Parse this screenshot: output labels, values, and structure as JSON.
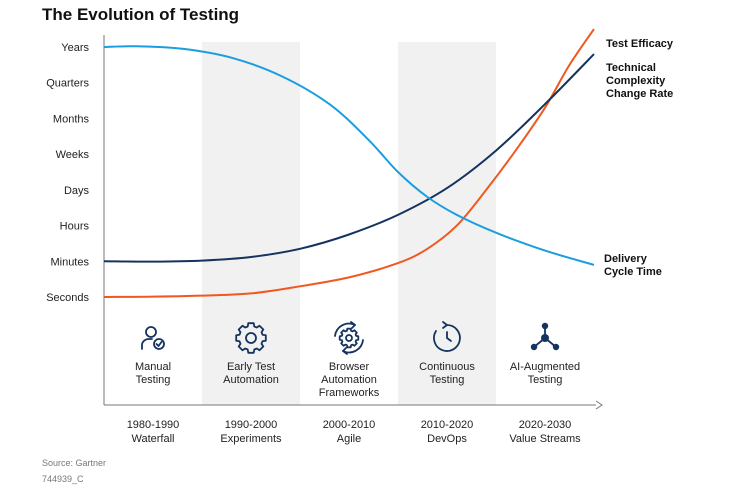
{
  "chart_data": {
    "type": "line",
    "title": "The Evolution of Testing",
    "y_levels": [
      "Years",
      "Quarters",
      "Months",
      "Weeks",
      "Days",
      "Hours",
      "Minutes",
      "Seconds"
    ],
    "eras": [
      {
        "period": "1980-1990",
        "label": "Waterfall",
        "phase": [
          "Manual",
          "Testing"
        ],
        "icon": "person-check-icon",
        "shaded": false
      },
      {
        "period": "1990-2000",
        "label": "Experiments",
        "phase": [
          "Early Test",
          "Automation"
        ],
        "icon": "gear-icon",
        "shaded": true
      },
      {
        "period": "2000-2010",
        "label": "Agile",
        "phase": [
          "Browser",
          "Automation",
          "Frameworks"
        ],
        "icon": "gear-cycle-icon",
        "shaded": false
      },
      {
        "period": "2010-2020",
        "label": "DevOps",
        "phase": [
          "Continuous",
          "Testing"
        ],
        "icon": "continuous-cycle-icon",
        "shaded": true
      },
      {
        "period": "2020-2030",
        "label": "Value Streams",
        "phase": [
          "AI-Augmented",
          "Testing"
        ],
        "icon": "network-nodes-icon",
        "shaded": false
      }
    ],
    "series": [
      {
        "name": "Test Efficacy",
        "label_lines": [
          "Test Efficacy"
        ],
        "color": "#f0581f",
        "x": [
          0,
          0.5,
          1,
          1.5,
          2,
          2.5,
          3,
          3.3,
          3.6,
          3.9,
          4.2,
          4.5,
          4.75,
          5
        ],
        "y": [
          0,
          0.01,
          0.04,
          0.1,
          0.3,
          0.55,
          0.95,
          1.35,
          2.0,
          3.0,
          4.1,
          5.3,
          6.5,
          7.5
        ]
      },
      {
        "name": "Technical Complexity Change Rate",
        "label_lines": [
          "Technical",
          "Complexity",
          "Change Rate"
        ],
        "color": "#14335f",
        "x": [
          0,
          0.5,
          1,
          1.5,
          2,
          2.5,
          3,
          3.5,
          4,
          4.5,
          5
        ],
        "y": [
          1,
          0.99,
          1.02,
          1.12,
          1.35,
          1.75,
          2.3,
          3.05,
          4.1,
          5.4,
          6.8
        ]
      },
      {
        "name": "Delivery Cycle Time",
        "label_lines": [
          "Delivery",
          "Cycle Time"
        ],
        "color": "#1a9ee0",
        "x": [
          0,
          0.35,
          0.8,
          1.3,
          1.8,
          2.3,
          2.7,
          3.0,
          3.3,
          3.6,
          4.0,
          4.5,
          5
        ],
        "y": [
          7,
          7.02,
          6.95,
          6.7,
          6.2,
          5.4,
          4.4,
          3.5,
          2.8,
          2.3,
          1.8,
          1.3,
          0.9
        ]
      }
    ],
    "source": "Source: Gartner",
    "code": "744939_C"
  }
}
